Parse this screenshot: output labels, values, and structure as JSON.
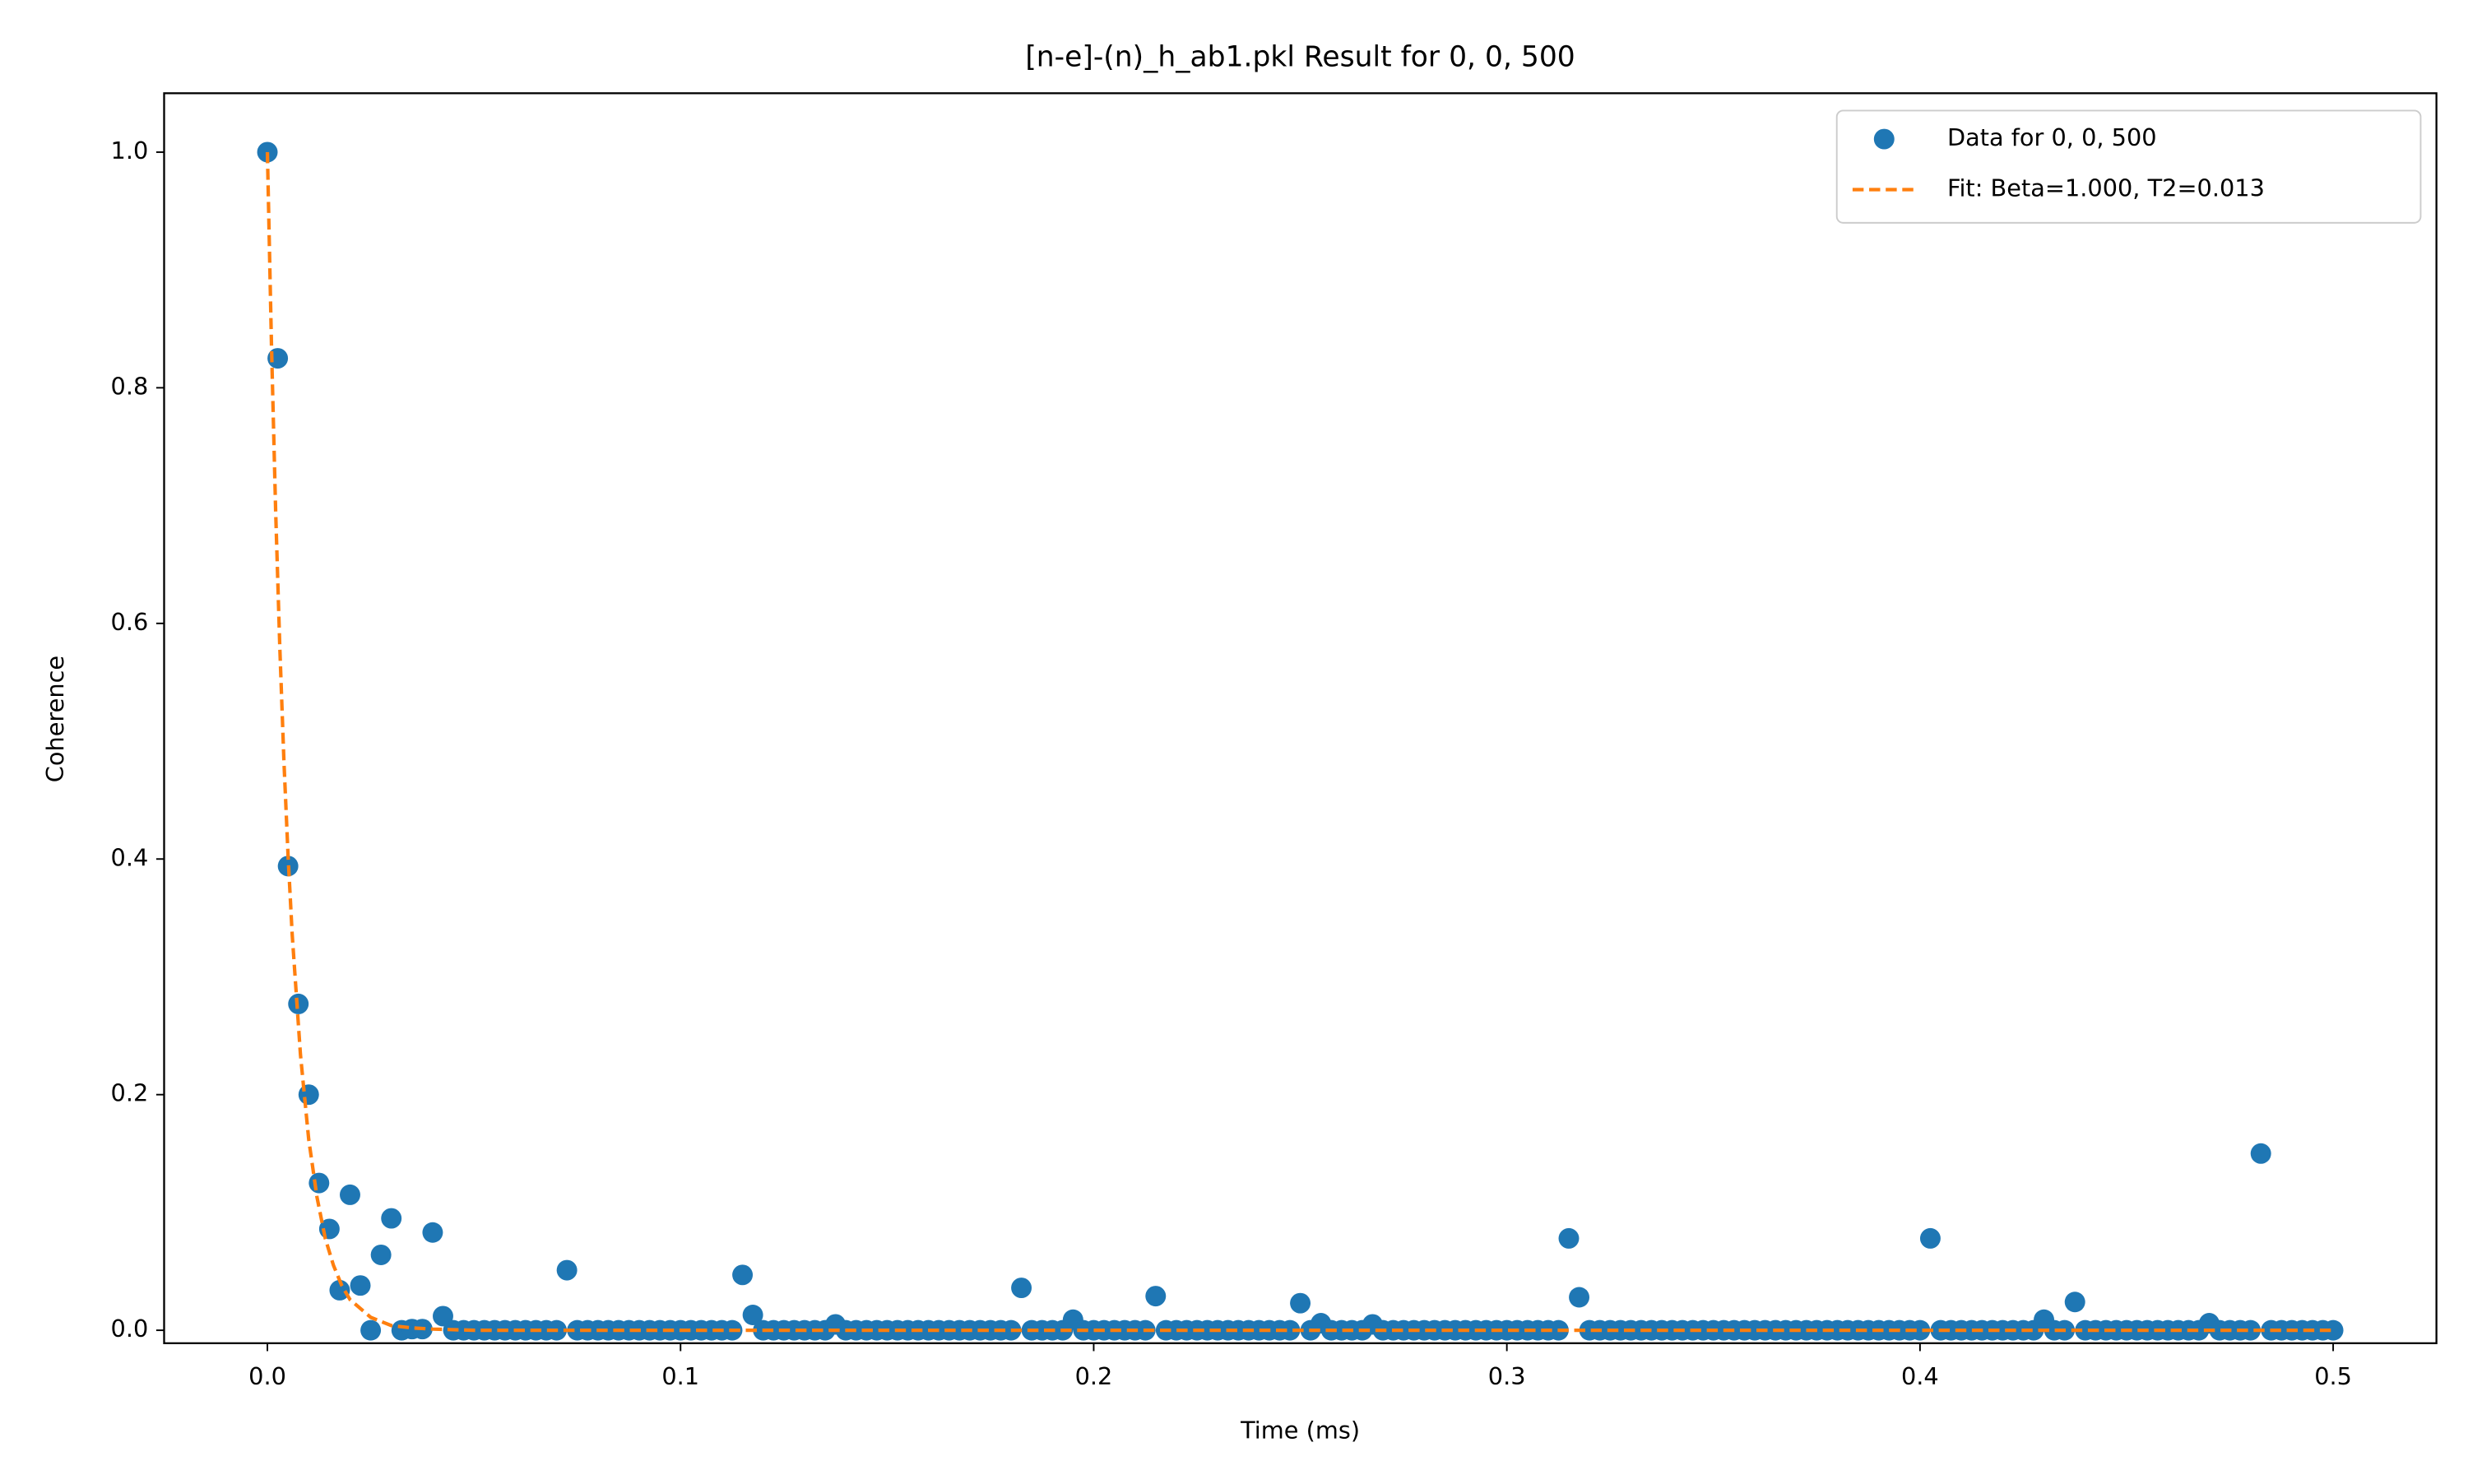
{
  "chart_data": {
    "type": "scatter",
    "title": "[n-e]-(n)_h_ab1.pkl Result for 0, 0, 500",
    "x_label": "Time (ms)",
    "y_label": "Coherence",
    "xlim": [
      -0.025,
      0.525
    ],
    "ylim": [
      -0.011,
      1.05
    ],
    "xticks": [
      {
        "value": 0,
        "label": "0.0"
      },
      0.1,
      0.2,
      0.3,
      0.4,
      0.5
    ],
    "yticks": [
      {
        "value": 0,
        "label": "0.0"
      },
      0.2,
      0.4,
      0.6,
      0.8,
      {
        "value": 1,
        "label": "1.0"
      }
    ],
    "grid": false,
    "legend": "upper right",
    "series": [
      {
        "name": "Data for 0, 0, 500",
        "color": "#1f77b4",
        "style": "markers",
        "x": [
          0,
          0.0025,
          0.005,
          0.0075,
          0.01,
          0.0125,
          0.015,
          0.0175,
          0.02,
          0.0225,
          0.025,
          0.0275,
          0.03,
          0.0325,
          0.035,
          0.0375,
          0.04,
          0.0425,
          0.045,
          0.0475,
          0.05,
          0.0525,
          0.055,
          0.0575,
          0.06,
          0.0625,
          0.065,
          0.0675,
          0.07,
          0.0725,
          0.075,
          0.0775,
          0.08,
          0.0825,
          0.085,
          0.0875,
          0.09,
          0.0925,
          0.095,
          0.0975,
          0.1,
          0.1025,
          0.105,
          0.1075,
          0.11,
          0.1125,
          0.115,
          0.1175,
          0.12,
          0.1225,
          0.125,
          0.1275,
          0.13,
          0.1325,
          0.135,
          0.1375,
          0.14,
          0.1425,
          0.145,
          0.1475,
          0.15,
          0.1525,
          0.155,
          0.1575,
          0.16,
          0.1625,
          0.165,
          0.1675,
          0.17,
          0.1725,
          0.175,
          0.1775,
          0.18,
          0.1825,
          0.185,
          0.1875,
          0.19,
          0.1925,
          0.195,
          0.1975,
          0.2,
          0.2025,
          0.205,
          0.2075,
          0.21,
          0.2125,
          0.215,
          0.2175,
          0.22,
          0.2225,
          0.225,
          0.2275,
          0.23,
          0.2325,
          0.235,
          0.2375,
          0.24,
          0.2425,
          0.245,
          0.2475,
          0.25,
          0.2525,
          0.255,
          0.2575,
          0.26,
          0.2625,
          0.265,
          0.2675,
          0.27,
          0.2725,
          0.275,
          0.2775,
          0.28,
          0.2825,
          0.285,
          0.2875,
          0.29,
          0.2925,
          0.295,
          0.2975,
          0.3,
          0.3025,
          0.305,
          0.3075,
          0.31,
          0.3125,
          0.315,
          0.3175,
          0.32,
          0.3225,
          0.325,
          0.3275,
          0.33,
          0.3325,
          0.335,
          0.3375,
          0.34,
          0.3425,
          0.345,
          0.3475,
          0.35,
          0.3525,
          0.355,
          0.3575,
          0.36,
          0.3625,
          0.365,
          0.3675,
          0.37,
          0.3725,
          0.375,
          0.3775,
          0.38,
          0.3825,
          0.385,
          0.3875,
          0.39,
          0.3925,
          0.395,
          0.3975,
          0.4,
          0.4025,
          0.405,
          0.4075,
          0.41,
          0.4125,
          0.415,
          0.4175,
          0.42,
          0.4225,
          0.425,
          0.4275,
          0.43,
          0.4325,
          0.435,
          0.4375,
          0.44,
          0.4425,
          0.445,
          0.4475,
          0.45,
          0.4525,
          0.455,
          0.4575,
          0.46,
          0.4625,
          0.465,
          0.4675,
          0.47,
          0.4725,
          0.475,
          0.4775,
          0.48,
          0.4825,
          0.485,
          0.4875,
          0.49,
          0.4925,
          0.495,
          0.4975,
          0.5
        ],
        "values": [
          1.0,
          0.825,
          0.394,
          0.277,
          0.2,
          0.125,
          0.086,
          0.034,
          0.115,
          0.038,
          0,
          0.064,
          0.095,
          0,
          0.001,
          0.001,
          0.083,
          0.012,
          0,
          0,
          0,
          0,
          0,
          0,
          0,
          0,
          0,
          0,
          0,
          0.051,
          0,
          0,
          0,
          0,
          0,
          0,
          0,
          0,
          0,
          0,
          0,
          0,
          0,
          0,
          0,
          0,
          0.047,
          0.013,
          0,
          0,
          0,
          0,
          0,
          0,
          0,
          0.005,
          0,
          0,
          0,
          0,
          0,
          0,
          0,
          0,
          0,
          0,
          0,
          0,
          0,
          0,
          0,
          0,
          0,
          0.036,
          0,
          0,
          0,
          0,
          0.009,
          0,
          0,
          0,
          0,
          0,
          0,
          0,
          0.029,
          0,
          0,
          0,
          0,
          0,
          0,
          0,
          0,
          0,
          0,
          0,
          0,
          0,
          0.023,
          0,
          0.006,
          0,
          0,
          0,
          0,
          0.005,
          0,
          0,
          0,
          0,
          0,
          0,
          0,
          0,
          0,
          0,
          0,
          0,
          0,
          0,
          0,
          0,
          0,
          0,
          0.078,
          0.028,
          0,
          0,
          0,
          0,
          0,
          0,
          0,
          0,
          0,
          0,
          0,
          0,
          0,
          0,
          0,
          0,
          0,
          0,
          0,
          0,
          0,
          0,
          0,
          0,
          0,
          0,
          0,
          0,
          0,
          0,
          0,
          0,
          0,
          0.078,
          0,
          0,
          0,
          0,
          0,
          0,
          0,
          0,
          0,
          0,
          0.009,
          0,
          0,
          0.024,
          0,
          0,
          0,
          0,
          0,
          0,
          0,
          0,
          0,
          0,
          0,
          0,
          0.006,
          0,
          0,
          0,
          0,
          0.15,
          0,
          0,
          0,
          0,
          0,
          0,
          0
        ]
      },
      {
        "name": "Fit: Beta=1.000, T2=0.013",
        "color": "#ff7f0e",
        "style": "dashed",
        "x": [
          0,
          0.001,
          0.002,
          0.003,
          0.004,
          0.005,
          0.006,
          0.008,
          0.01,
          0.012,
          0.014,
          0.016,
          0.018,
          0.02,
          0.025,
          0.03,
          0.035,
          0.04,
          0.05,
          0.5
        ],
        "values": [
          1,
          0.834,
          0.695,
          0.58,
          0.483,
          0.403,
          0.336,
          0.234,
          0.162,
          0.113,
          0.078,
          0.055,
          0.038,
          0.026,
          0.011,
          0.004,
          0.002,
          0.001,
          0,
          0
        ]
      }
    ]
  }
}
